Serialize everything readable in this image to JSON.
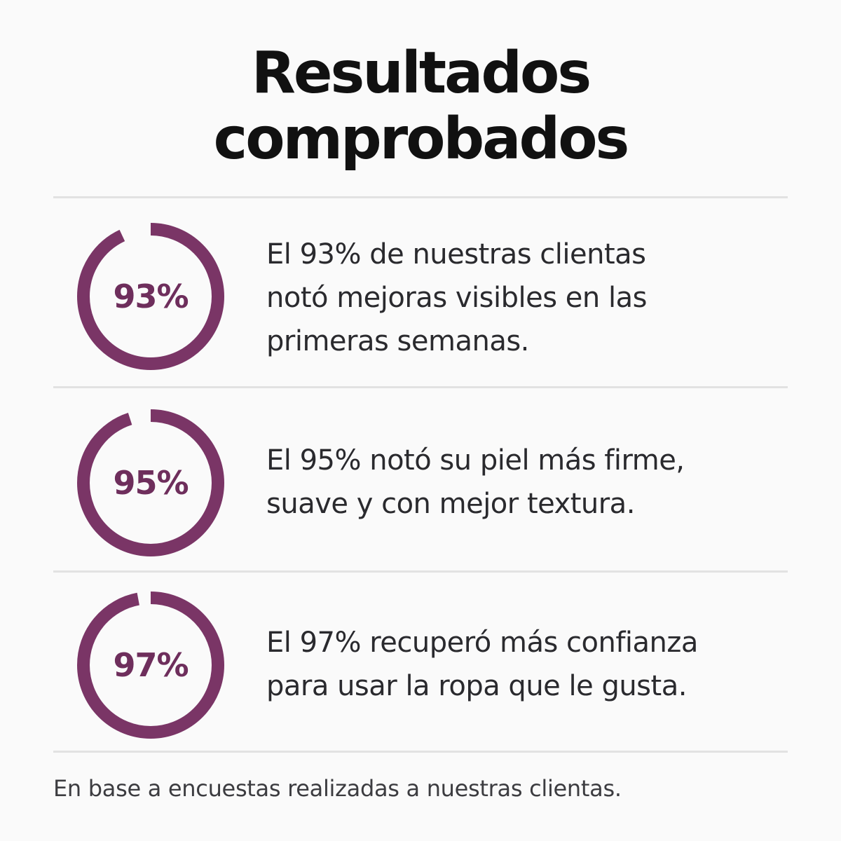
{
  "title": {
    "line1": "Resultados",
    "line2": "comprobados"
  },
  "accent_color": "#7a3566",
  "track_color": "#ffffff",
  "stats": [
    {
      "value": 93,
      "label": "93%",
      "lines": [
        "El 93% de nuestras clientas",
        "notó mejoras visibles en las",
        "primeras semanas."
      ]
    },
    {
      "value": 95,
      "label": "95%",
      "lines": [
        "El 95% notó su piel más firme,",
        "suave y con mejor textura."
      ]
    },
    {
      "value": 97,
      "label": "97%",
      "lines": [
        "El 97% recuperó más confianza",
        "para usar la ropa que le gusta."
      ]
    }
  ],
  "footnote": "En base a encuestas realizadas a nuestras clientas."
}
